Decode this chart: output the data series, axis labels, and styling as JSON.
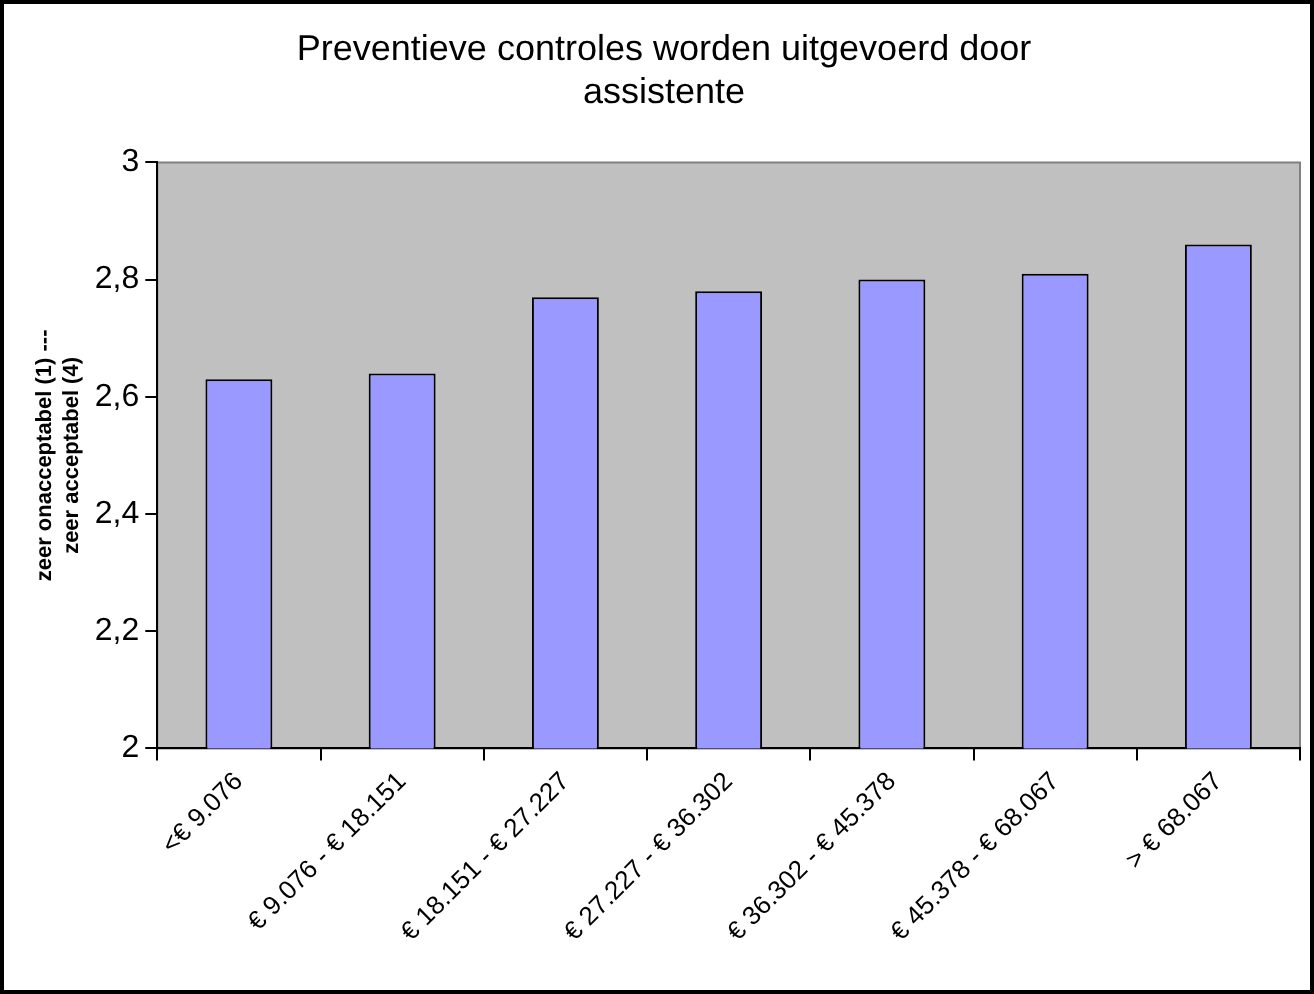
{
  "chart_data": {
    "type": "bar",
    "title": "Preventieve controles worden uitgevoerd door assistente",
    "ylabel": "zeer onacceptabel (1) --- zeer acceptabel (4)",
    "categories": [
      "<€ 9.076",
      "€ 9.076 - € 18.151",
      "€ 18.151 - € 27.227",
      "€ 27.227 - € 36.302",
      "€ 36.302 - € 45.378",
      "€ 45.378 - € 68.067",
      "> € 68.067"
    ],
    "values": [
      2.63,
      2.64,
      2.77,
      2.78,
      2.8,
      2.81,
      2.86
    ],
    "color": "#9999ff",
    "ylim": [
      2,
      3
    ],
    "yticks": [
      {
        "value": 2,
        "label": "2"
      },
      {
        "value": 2.2,
        "label": "2,2"
      },
      {
        "value": 2.4,
        "label": "2,4"
      },
      {
        "value": 2.6,
        "label": "2,6"
      },
      {
        "value": 2.8,
        "label": "2,8"
      },
      {
        "value": 3,
        "label": "3"
      }
    ],
    "grid": false,
    "legend": false
  }
}
